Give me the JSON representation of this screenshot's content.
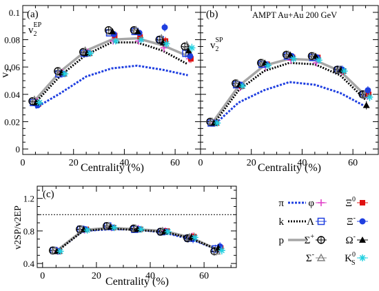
{
  "chart_data": [
    {
      "panel_tag": "(a)",
      "type": "line",
      "observable_label": "v",
      "observable_sub": "2",
      "observable_sup": "EP",
      "ylabel": "v",
      "ylabel_sub": "2",
      "xlabel": "Centrality (%)",
      "xlim": [
        0,
        70
      ],
      "ylim": [
        -0.004,
        0.105
      ],
      "x_ticks": [
        "0",
        "20",
        "40",
        "60"
      ],
      "y_ticks": [
        "0",
        "0.02",
        "0.04",
        "0.06",
        "0.08",
        "0.1"
      ],
      "x_centers": [
        5,
        15,
        25,
        35,
        45,
        55,
        65
      ],
      "species": [
        {
          "key": "pi",
          "values": [
            0.03,
            0.041,
            0.053,
            0.059,
            0.061,
            0.058,
            0.054
          ]
        },
        {
          "key": "k",
          "values": [
            0.034,
            0.054,
            0.069,
            0.078,
            0.078,
            0.072,
            0.062
          ]
        },
        {
          "key": "p",
          "values": [
            0.036,
            0.057,
            0.072,
            0.08,
            0.081,
            0.076,
            0.068
          ]
        },
        {
          "key": "phi",
          "values": [
            0.035,
            0.056,
            0.071,
            0.079,
            0.079,
            0.074,
            0.066
          ]
        },
        {
          "key": "Lambda",
          "values": [
            0.034,
            0.055,
            0.07,
            0.085,
            0.086,
            0.08,
            0.07
          ]
        },
        {
          "key": "Sigma+",
          "values": [
            0.035,
            0.057,
            0.071,
            0.087,
            0.087,
            0.08,
            0.075
          ]
        },
        {
          "key": "Sigma-",
          "values": [
            0.036,
            0.057,
            0.072,
            0.086,
            0.087,
            0.081,
            0.076
          ]
        },
        {
          "key": "Xi0",
          "values": [
            0.033,
            0.055,
            0.07,
            0.083,
            0.082,
            0.079,
            0.066
          ]
        },
        {
          "key": "Xi-",
          "values": [
            0.032,
            0.055,
            0.07,
            0.084,
            0.085,
            0.089,
            0.068
          ]
        },
        {
          "key": "Omega-",
          "values": [
            0.034,
            0.056,
            0.07,
            0.086,
            0.086,
            0.078,
            0.072
          ]
        },
        {
          "key": "K0S",
          "values": [
            0.034,
            0.055,
            0.07,
            0.079,
            0.08,
            0.077,
            0.074
          ]
        }
      ]
    },
    {
      "panel_tag": "(b)",
      "type": "line",
      "title": "AMPT Au+Au 200 GeV",
      "observable_label": "v",
      "observable_sub": "2",
      "observable_sup": "SP",
      "xlabel": "Centrality (%)",
      "xlim": [
        0,
        70
      ],
      "ylim": [
        -0.004,
        0.105
      ],
      "x_ticks": [
        "0",
        "20",
        "40",
        "60"
      ],
      "x_centers": [
        5,
        15,
        25,
        35,
        45,
        55,
        65
      ],
      "species": [
        {
          "key": "pi",
          "values": [
            0.017,
            0.034,
            0.043,
            0.049,
            0.047,
            0.041,
            0.031
          ]
        },
        {
          "key": "k",
          "values": [
            0.018,
            0.043,
            0.057,
            0.063,
            0.062,
            0.054,
            0.036
          ]
        },
        {
          "key": "p",
          "values": [
            0.02,
            0.046,
            0.061,
            0.066,
            0.065,
            0.057,
            0.039
          ]
        },
        {
          "key": "phi",
          "values": [
            0.019,
            0.045,
            0.06,
            0.065,
            0.063,
            0.057,
            0.039
          ]
        },
        {
          "key": "Lambda",
          "values": [
            0.019,
            0.047,
            0.062,
            0.068,
            0.067,
            0.058,
            0.04
          ]
        },
        {
          "key": "Sigma+",
          "values": [
            0.02,
            0.048,
            0.063,
            0.069,
            0.068,
            0.058,
            0.04
          ]
        },
        {
          "key": "Sigma-",
          "values": [
            0.02,
            0.048,
            0.063,
            0.069,
            0.068,
            0.058,
            0.04
          ]
        },
        {
          "key": "Xi0",
          "values": [
            0.019,
            0.046,
            0.062,
            0.067,
            0.067,
            0.057,
            0.04
          ]
        },
        {
          "key": "Xi-",
          "values": [
            0.019,
            0.047,
            0.062,
            0.068,
            0.067,
            0.058,
            0.043
          ]
        },
        {
          "key": "Omega-",
          "values": [
            0.019,
            0.047,
            0.063,
            0.069,
            0.068,
            0.058,
            0.032
          ]
        },
        {
          "key": "K0S",
          "values": [
            0.019,
            0.046,
            0.061,
            0.066,
            0.065,
            0.057,
            0.038
          ]
        }
      ]
    },
    {
      "panel_tag": "(c)",
      "type": "line",
      "ylabel": "v2SP/v2EP",
      "xlabel": "Centrality (%)",
      "xlim": [
        -2,
        72
      ],
      "ylim": [
        0.35,
        1.35
      ],
      "x_ticks": [
        "0",
        "20",
        "40",
        "60"
      ],
      "y_ticks": [
        "0.4",
        "0.8",
        "1.2"
      ],
      "reference_line": 1.0,
      "x_centers": [
        5,
        15,
        25,
        35,
        45,
        55,
        65
      ],
      "species": [
        {
          "key": "pi",
          "values": [
            0.55,
            0.8,
            0.82,
            0.82,
            0.78,
            0.7,
            0.57
          ]
        },
        {
          "key": "k",
          "values": [
            0.54,
            0.8,
            0.83,
            0.81,
            0.79,
            0.71,
            0.57
          ]
        },
        {
          "key": "p",
          "values": [
            0.55,
            0.81,
            0.84,
            0.82,
            0.8,
            0.72,
            0.57
          ]
        },
        {
          "key": "phi",
          "values": [
            0.55,
            0.81,
            0.84,
            0.83,
            0.8,
            0.73,
            0.57
          ]
        },
        {
          "key": "Lambda",
          "values": [
            0.56,
            0.82,
            0.86,
            0.82,
            0.79,
            0.71,
            0.58
          ]
        },
        {
          "key": "Sigma+",
          "values": [
            0.56,
            0.82,
            0.86,
            0.83,
            0.79,
            0.71,
            0.55
          ]
        },
        {
          "key": "Sigma-",
          "values": [
            0.56,
            0.82,
            0.86,
            0.83,
            0.8,
            0.72,
            0.55
          ]
        },
        {
          "key": "Xi0",
          "values": [
            0.55,
            0.82,
            0.84,
            0.82,
            0.8,
            0.73,
            0.59
          ]
        },
        {
          "key": "Xi-",
          "values": [
            0.55,
            0.82,
            0.84,
            0.82,
            0.79,
            0.7,
            0.61
          ]
        },
        {
          "key": "Omega-",
          "values": [
            0.55,
            0.82,
            0.85,
            0.82,
            0.79,
            0.72,
            0.59
          ]
        },
        {
          "key": "K0S",
          "values": [
            0.55,
            0.81,
            0.84,
            0.82,
            0.79,
            0.72,
            0.56
          ]
        }
      ]
    }
  ],
  "legend": {
    "pi": {
      "label": "π",
      "color": "#1f3fe0",
      "style": "dotted"
    },
    "k": {
      "label": "k",
      "color": "#000000",
      "style": "dotted"
    },
    "p": {
      "label": "p",
      "color": "#a6a6a6",
      "style": "solid"
    },
    "phi": {
      "label": "φ",
      "color": "#e040c8",
      "marker": "plus"
    },
    "Lambda": {
      "label": "Λ",
      "color": "#1f3fe0",
      "marker": "open-square"
    },
    "Sigma+": {
      "label": "Σ",
      "sup": "+",
      "color": "#000000",
      "marker": "open-circle-cross"
    },
    "Sigma-": {
      "label": "Σ",
      "sup": "-",
      "color": "#808080",
      "marker": "open-triangle"
    },
    "Xi0": {
      "label": "Ξ",
      "sup": "0",
      "color": "#e01010",
      "marker": "filled-square"
    },
    "Xi-": {
      "label": "Ξ",
      "sup": "-",
      "color": "#1f3fe0",
      "marker": "filled-circle"
    },
    "Omega-": {
      "label": "Ω",
      "sup": "-",
      "color": "#000000",
      "marker": "filled-triangle"
    },
    "K0S": {
      "label": "K",
      "sup": "0",
      "sub": "S",
      "color": "#22d0e0",
      "marker": "star"
    }
  }
}
